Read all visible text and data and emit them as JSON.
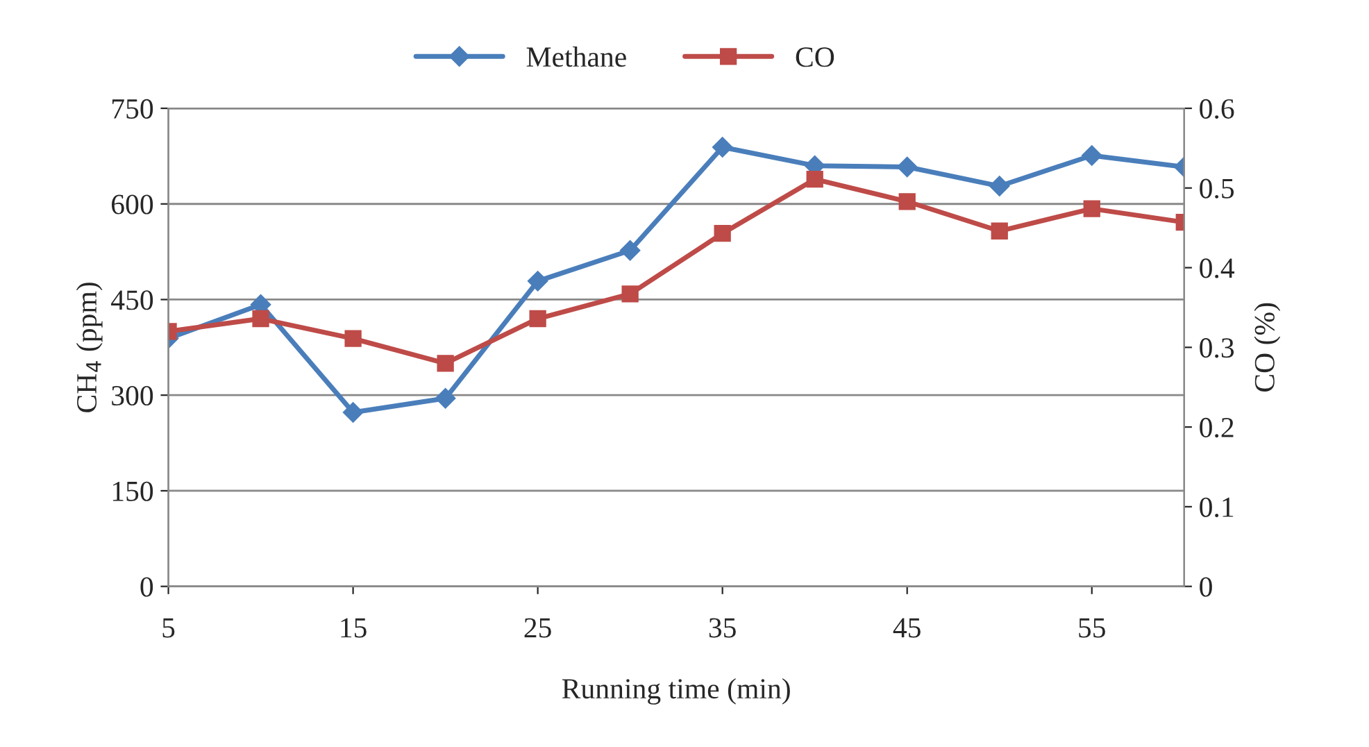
{
  "chart_data": {
    "type": "line",
    "xlabel": "Running time (min)",
    "ylabel": "CH$_{4}$ (ppm)",
    "y2label": "CO (%)",
    "x": [
      5,
      10,
      15,
      20,
      25,
      30,
      35,
      40,
      45,
      50,
      55,
      60
    ],
    "series": [
      {
        "name": "Methane",
        "color": "#4a7ebb",
        "marker": "diamond",
        "values": [
          389,
          442,
          273,
          295,
          479,
          527,
          689,
          660,
          658,
          628,
          676,
          658
        ]
      },
      {
        "name": "CO",
        "color": "#be4b48",
        "marker": "square",
        "axis": "y2",
        "values": [
          0.32,
          0.336,
          0.311,
          0.28,
          0.336,
          0.367,
          0.443,
          0.511,
          0.483,
          0.446,
          0.474,
          0.457
        ]
      }
    ],
    "xlim": [
      5,
      60
    ],
    "xticks": [
      5,
      15,
      25,
      35,
      45,
      55
    ],
    "ylim": [
      0,
      750
    ],
    "yticks": [
      0,
      150,
      300,
      450,
      600,
      750
    ],
    "y2lim": [
      0,
      0.6
    ],
    "y2ticks": [
      0,
      0.1,
      0.2,
      0.3,
      0.4,
      0.5,
      0.6
    ],
    "grid": "y",
    "legend": "top",
    "line_style": "solid"
  }
}
